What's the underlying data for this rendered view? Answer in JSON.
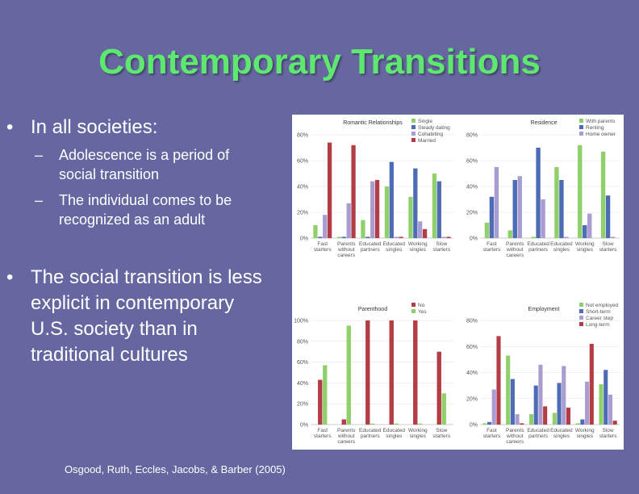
{
  "slide": {
    "title": "Contemporary Transitions",
    "bullet1": "In all societies:",
    "sub1_line1": "Adolescence is a period of",
    "sub1_line2": "social transition",
    "sub2_line1": "The individual comes to be",
    "sub2_line2": "recognized as an adult",
    "bullet2_line1": "The social transition is less",
    "bullet2_line2": "explicit in contemporary",
    "bullet2_line3": "U.S. society than in",
    "bullet2_line4": "traditional cultures",
    "citation": "Osgood, Ruth, Eccles, Jacobs, & Barber (2005)",
    "bullet_glyph": "•",
    "dash_glyph": "–"
  },
  "chart_data": [
    {
      "type": "bar",
      "title": "Romantic Relationships",
      "categories": [
        [
          "Fast",
          "starters"
        ],
        [
          "Parents",
          "without",
          "careers"
        ],
        [
          "Educated",
          "partners"
        ],
        [
          "Educated",
          "singles"
        ],
        [
          "Working",
          "singles"
        ],
        [
          "Slow",
          "starters"
        ]
      ],
      "ylim": [
        0,
        80
      ],
      "yticks": [
        "0%",
        "20%",
        "40%",
        "60%",
        "80%"
      ],
      "series": [
        {
          "name": "Single",
          "color": "#8fd06b",
          "values": [
            10,
            1,
            14,
            40,
            32,
            50
          ]
        },
        {
          "name": "Steady dating",
          "color": "#4e6cb5",
          "values": [
            1,
            1,
            1,
            59,
            54,
            44
          ]
        },
        {
          "name": "Cohabiting",
          "color": "#a99cd1",
          "values": [
            18,
            27,
            44,
            1,
            13,
            1
          ]
        },
        {
          "name": "Married",
          "color": "#b43d45",
          "values": [
            74,
            72,
            45,
            1,
            7,
            1
          ]
        }
      ]
    },
    {
      "type": "bar",
      "title": "Residence",
      "categories": [
        [
          "Fast",
          "starters"
        ],
        [
          "Parents",
          "without",
          "careers"
        ],
        [
          "Educated",
          "partners"
        ],
        [
          "Educated",
          "singles"
        ],
        [
          "Working",
          "singles"
        ],
        [
          "Slow",
          "starters"
        ]
      ],
      "ylim": [
        0,
        80
      ],
      "yticks": [
        "0%",
        "20%",
        "40%",
        "60%",
        "80%"
      ],
      "series": [
        {
          "name": "With parents",
          "color": "#8fd06b",
          "values": [
            12,
            6,
            1,
            55,
            72,
            67
          ]
        },
        {
          "name": "Renting",
          "color": "#4e6cb5",
          "values": [
            32,
            45,
            70,
            45,
            10,
            33
          ]
        },
        {
          "name": "Home owner",
          "color": "#a99cd1",
          "values": [
            55,
            48,
            30,
            1,
            19,
            1
          ]
        }
      ]
    },
    {
      "type": "bar",
      "title": "Parenthood",
      "categories": [
        [
          "Fast",
          "starters"
        ],
        [
          "Parents",
          "without",
          "careers"
        ],
        [
          "Educated",
          "partners"
        ],
        [
          "Educated",
          "singles"
        ],
        [
          "Working",
          "singles"
        ],
        [
          "Slow",
          "starters"
        ]
      ],
      "ylim": [
        0,
        100
      ],
      "yticks": [
        "0%",
        "20%",
        "40%",
        "60%",
        "80%",
        "100%"
      ],
      "series": [
        {
          "name": "No",
          "color": "#b43d45",
          "values": [
            43,
            5,
            100,
            100,
            100,
            70
          ]
        },
        {
          "name": "Yes",
          "color": "#8fd06b",
          "values": [
            57,
            95,
            1,
            1,
            1,
            30
          ]
        }
      ]
    },
    {
      "type": "bar",
      "title": "Employment",
      "categories": [
        [
          "Fast",
          "starters"
        ],
        [
          "Parents",
          "without",
          "careers"
        ],
        [
          "Educated",
          "partners"
        ],
        [
          "Educated",
          "singles"
        ],
        [
          "Working",
          "singles"
        ],
        [
          "Slow",
          "starters"
        ]
      ],
      "ylim": [
        0,
        80
      ],
      "yticks": [
        "0%",
        "20%",
        "40%",
        "60%",
        "80%"
      ],
      "series": [
        {
          "name": "Not employed",
          "color": "#8fd06b",
          "values": [
            1,
            53,
            8,
            9,
            1,
            31
          ]
        },
        {
          "name": "Short-term",
          "color": "#4e6cb5",
          "values": [
            2,
            35,
            30,
            32,
            4,
            42
          ]
        },
        {
          "name": "Career step",
          "color": "#a99cd1",
          "values": [
            27,
            8,
            46,
            45,
            33,
            23
          ]
        },
        {
          "name": "Long-term",
          "color": "#b43d45",
          "values": [
            68,
            1,
            14,
            13,
            62,
            3
          ]
        }
      ]
    }
  ]
}
